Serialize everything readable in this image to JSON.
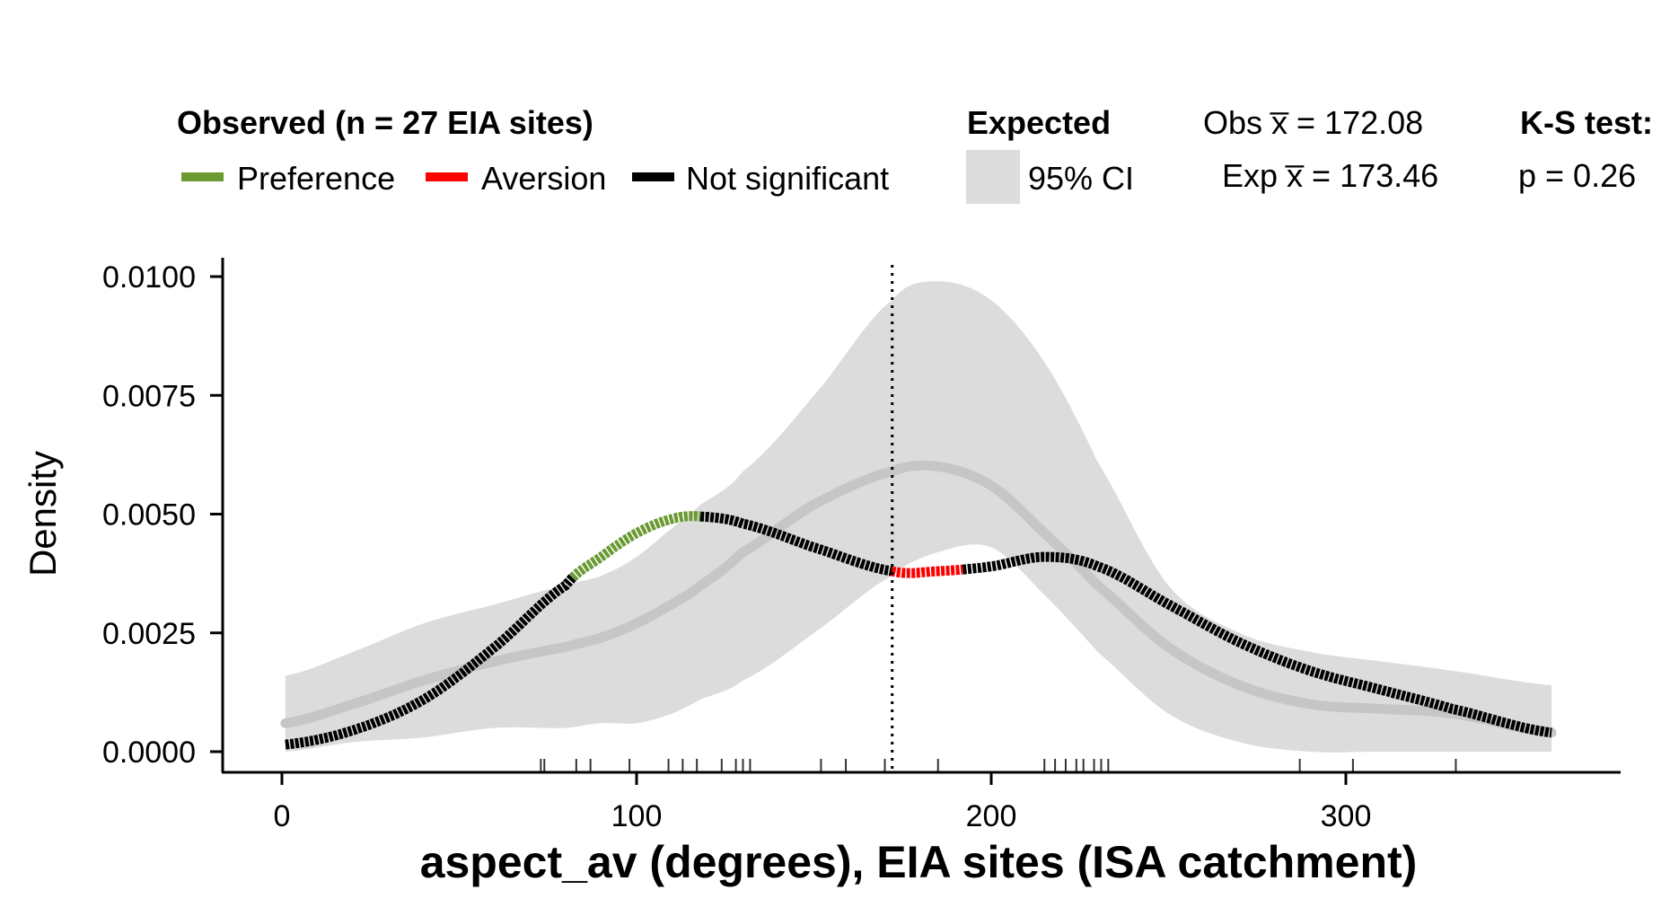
{
  "chart_data": {
    "type": "line",
    "title": "",
    "xlabel": "aspect_av (degrees), EIA sites (ISA catchment)",
    "ylabel": "Density",
    "xlim": [
      0,
      360
    ],
    "ylim": [
      0,
      0.01
    ],
    "x_ticks": [
      0,
      100,
      200,
      300
    ],
    "x_tick_labels": [
      "0",
      "100",
      "200",
      "300"
    ],
    "y_ticks": [
      0,
      0.0025,
      0.005,
      0.0075,
      0.01
    ],
    "y_tick_labels": [
      "0.0000",
      "0.0025",
      "0.0050",
      "0.0075",
      "0.0100"
    ],
    "legend": {
      "observed_title": "Observed (n = 27 EIA sites)",
      "preference_label": "Preference",
      "aversion_label": "Aversion",
      "not_significant_label": "Not significant",
      "expected_title": "Expected",
      "ci_label": "95% CI",
      "obs_mean_label": "Obs x̅ = 172.08",
      "exp_mean_label": "Exp x̅ = 173.46",
      "ks_title": "K-S test:",
      "p_value_label": "p = 0.26",
      "position": "top"
    },
    "colors": {
      "preference": "#6b9a33",
      "aversion": "#ff0000",
      "not_significant": "#000000",
      "ci_band": "#dcdcdc",
      "expected_line": "#c6c6c6"
    },
    "observed_mean": 172.08,
    "expected_mean": 173.46,
    "ks_p": 0.26,
    "x": [
      1,
      20,
      40,
      60,
      80,
      90,
      100,
      110,
      118,
      130,
      150,
      172,
      185,
      200,
      215,
      230,
      250,
      270,
      290,
      310,
      330,
      358
    ],
    "series": [
      {
        "name": "Observed density",
        "values": [
          0.00015,
          0.00045,
          0.0011,
          0.0022,
          0.0035,
          0.0041,
          0.0046,
          0.0049,
          0.00495,
          0.0048,
          0.0043,
          0.0038,
          0.0038,
          0.0039,
          0.0041,
          0.0039,
          0.0031,
          0.0023,
          0.0017,
          0.0013,
          0.0009,
          0.0004
        ],
        "significance": [
          {
            "from": 1,
            "to": 82,
            "status": "Not significant"
          },
          {
            "from": 82,
            "to": 118,
            "status": "Preference"
          },
          {
            "from": 118,
            "to": 172,
            "status": "Not significant"
          },
          {
            "from": 172,
            "to": 192,
            "status": "Aversion"
          },
          {
            "from": 192,
            "to": 358,
            "status": "Not significant"
          }
        ]
      },
      {
        "name": "Expected density",
        "values": [
          0.0006,
          0.001,
          0.0015,
          0.0019,
          0.0022,
          0.0024,
          0.0027,
          0.0031,
          0.0035,
          0.0042,
          0.0052,
          0.0059,
          0.006,
          0.0056,
          0.0046,
          0.0035,
          0.0022,
          0.0014,
          0.001,
          0.0009,
          0.0008,
          0.0004
        ]
      },
      {
        "name": "95% CI lower",
        "values": [
          0,
          0.0002,
          0.0003,
          0.0005,
          0.0005,
          0.0006,
          0.0006,
          0.0008,
          0.0011,
          0.0015,
          0.0025,
          0.0037,
          0.0042,
          0.0043,
          0.0033,
          0.0021,
          0.0008,
          0.0002,
          0,
          0,
          0,
          0
        ]
      },
      {
        "name": "95% CI upper",
        "values": [
          0.0016,
          0.0021,
          0.0027,
          0.0031,
          0.0035,
          0.0037,
          0.0041,
          0.0047,
          0.0052,
          0.0059,
          0.0075,
          0.0095,
          0.0099,
          0.0095,
          0.0082,
          0.0061,
          0.0035,
          0.0025,
          0.0021,
          0.0019,
          0.0017,
          0.0014
        ]
      }
    ],
    "rug": [
      73,
      74,
      83,
      87,
      98,
      109,
      113,
      117,
      124,
      128,
      130,
      132,
      152,
      159,
      170,
      185,
      215,
      218,
      221,
      224,
      226,
      229,
      231,
      233,
      287,
      302,
      331
    ]
  }
}
